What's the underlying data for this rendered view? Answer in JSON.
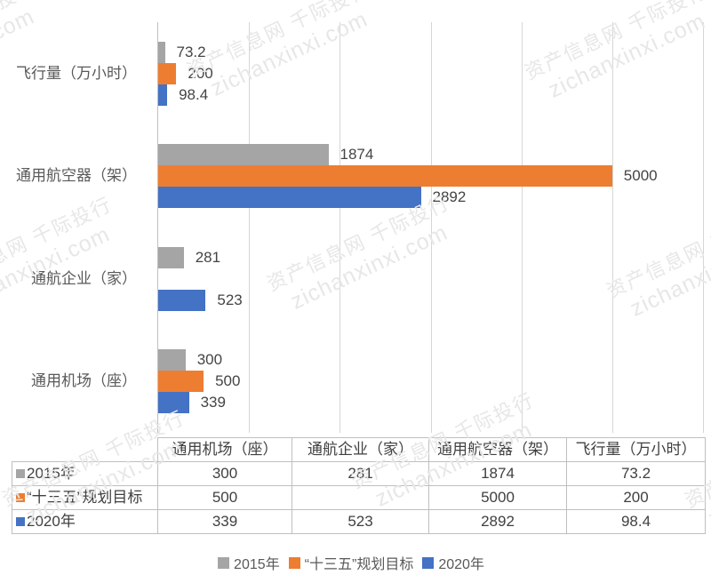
{
  "watermark": {
    "line1": "资产信息网 千际投行",
    "line2": "zichanxinxi.com"
  },
  "colors": {
    "series_2015": "#A5A5A5",
    "series_plan": "#ED7D31",
    "series_2020": "#4472C4",
    "gridline": "#D6D6D6",
    "axis_line": "#BFBFBF",
    "table_border": "#BFBFBF",
    "label_text": "#595959",
    "value_text": "#444444"
  },
  "chart_data": {
    "type": "bar",
    "orientation": "horizontal",
    "title": "",
    "categories": [
      "飞行量（万小时）",
      "通用航空器（架）",
      "通航企业（家）",
      "通用机场（座）"
    ],
    "series": [
      {
        "name": "2015年",
        "color": "#A5A5A5",
        "values": [
          73.2,
          1874,
          281,
          300
        ]
      },
      {
        "name": "“十三五”规划目标",
        "color": "#ED7D31",
        "values": [
          200,
          5000,
          null,
          500
        ]
      },
      {
        "name": "2020年",
        "color": "#4472C4",
        "values": [
          98.4,
          2892,
          523,
          339
        ]
      }
    ],
    "axis": {
      "min": 0,
      "max": 6000,
      "step": 1000,
      "tick_labels_visible": false
    },
    "grid": true,
    "legend_position": "bottom",
    "data_labels": true
  },
  "table": {
    "headers": [
      "",
      "通用机场（座）",
      "通航企业（家）",
      "通用航空器（架）",
      "飞行量（万小时）"
    ],
    "rows": [
      {
        "label": "2015年",
        "swatch": "#A5A5A5",
        "values": [
          "300",
          "281",
          "1874",
          "73.2"
        ]
      },
      {
        "label": "“十三五”规划目标",
        "swatch": "#ED7D31",
        "values": [
          "500",
          "",
          "5000",
          "200"
        ]
      },
      {
        "label": "2020年",
        "swatch": "#4472C4",
        "values": [
          "339",
          "523",
          "2892",
          "98.4"
        ]
      }
    ]
  }
}
